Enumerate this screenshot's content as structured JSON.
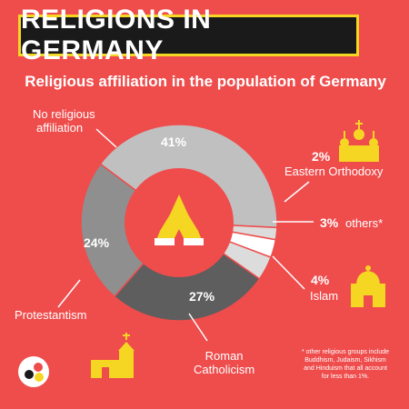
{
  "header": {
    "title": "RELIGIONS IN GERMANY",
    "subtitle": "Religious affiliation in the population of Germany"
  },
  "labels": {
    "no_religion": "No religious affiliation",
    "no_religion_line1": "No religious",
    "no_religion_line2": "affiliation",
    "eastern_orthodoxy": "Eastern Orthodoxy",
    "others": "others*",
    "islam": "Islam",
    "protestantism": "Protestantism",
    "roman_catholicism_line1": "Roman",
    "roman_catholicism_line2": "Catholicism"
  },
  "percentages": {
    "no_religion": "41%",
    "eastern_orthodoxy": "2%",
    "others": "3%",
    "islam": "4%",
    "protestantism": "24%",
    "roman_catholicism": "27%"
  },
  "footnote": "* other religious groups include Buddhism, Judaism, Sikhism and Hinduism that all account for less than 1%.",
  "colors": {
    "background": "#ef4c4c",
    "title_box": "#1a1a1a",
    "title_border": "#f5d623",
    "icon_yellow": "#f5d623",
    "no_religion": "#c0c0c0",
    "eastern_orthodoxy": "#dcdcdc",
    "others": "#ffffff",
    "islam": "#dcdcdc",
    "roman_catholicism": "#5e5e5e",
    "protestantism": "#8f8f8f"
  },
  "icons": [
    "praying-hands-icon",
    "orthodox-church-icon",
    "mosque-icon",
    "church-icon",
    "logo-icon"
  ],
  "chart_data": {
    "type": "pie",
    "categories": [
      "No religious affiliation",
      "Eastern Orthodoxy",
      "others*",
      "Islam",
      "Roman Catholicism",
      "Protestantism"
    ],
    "values": [
      41,
      2,
      3,
      4,
      27,
      24
    ],
    "title": "Religious affiliation in the population of Germany",
    "donut": true
  }
}
